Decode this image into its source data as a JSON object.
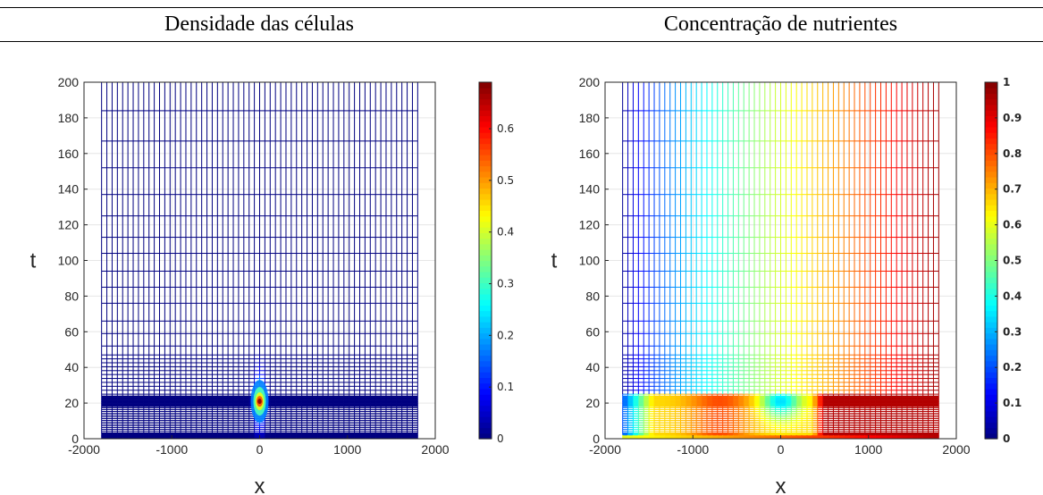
{
  "headers": [
    "Densidade das células",
    "Concentração de nutrientes"
  ],
  "chart_data": [
    {
      "type": "heatmap",
      "title": "Densidade das células",
      "xlabel": "x",
      "ylabel": "t",
      "xlim": [
        -2000,
        2000
      ],
      "ylim": [
        0,
        200
      ],
      "x_ticks": [
        "-2000",
        "-1000",
        "0",
        "1000",
        "2000"
      ],
      "y_ticks": [
        "0",
        "20",
        "40",
        "60",
        "80",
        "100",
        "120",
        "140",
        "160",
        "180",
        "200"
      ],
      "x_range": [
        -1800,
        1800
      ],
      "colormap": "jet",
      "clim": [
        0,
        0.69
      ],
      "colorbar_ticks": [
        "0",
        "0.1",
        "0.2",
        "0.3",
        "0.4",
        "0.5",
        "0.6"
      ],
      "colorbar_ticks_bold": false,
      "grid": true,
      "features": [
        {
          "description": "narrow peak near x=0",
          "x": 0,
          "t": 21,
          "value": 0.69
        }
      ]
    },
    {
      "type": "heatmap",
      "title": "Concentração de nutrientes",
      "xlabel": "x",
      "ylabel": "t",
      "xlim": [
        -2000,
        2000
      ],
      "ylim": [
        0,
        200
      ],
      "x_ticks": [
        "-2000",
        "-1000",
        "0",
        "1000",
        "2000"
      ],
      "y_ticks": [
        "0",
        "20",
        "40",
        "60",
        "80",
        "100",
        "120",
        "140",
        "160",
        "180",
        "200"
      ],
      "x_range": [
        -1800,
        1800
      ],
      "colormap": "jet",
      "clim": [
        0,
        1
      ],
      "colorbar_ticks": [
        "0",
        "0.1",
        "0.2",
        "0.3",
        "0.4",
        "0.5",
        "0.6",
        "0.7",
        "0.8",
        "0.9",
        "1"
      ],
      "colorbar_ticks_bold": true,
      "grid": true,
      "features": [
        {
          "description": "low concentration on the left band",
          "x": -1800,
          "t": 21,
          "value": 0.15
        },
        {
          "description": "dip near x=0",
          "x": 0,
          "t": 21,
          "value": 0.2
        },
        {
          "description": "high concentration toward x=1800",
          "x": 1800,
          "t": 200,
          "value": 0.95
        }
      ]
    }
  ]
}
